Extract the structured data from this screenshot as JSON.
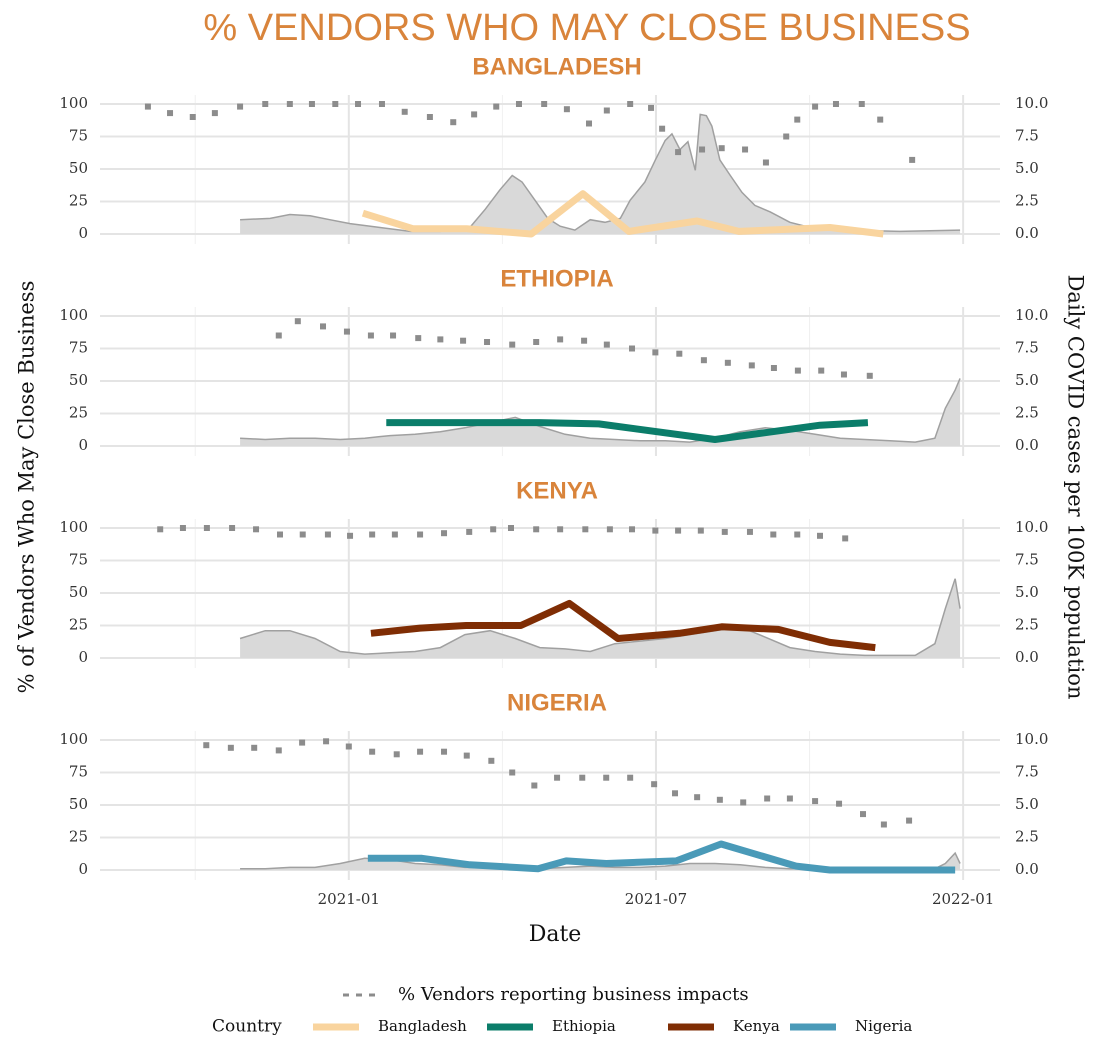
{
  "title": "% VENDORS WHO MAY CLOSE BUSINESS",
  "ylabel": "% of Vendors Who May Close Business",
  "y2label": "Daily COVID cases per 100K population",
  "xaxis": {
    "label": "Date",
    "xlim": [
      2020.595,
      2022.06
    ],
    "xticks": [
      {
        "value": 2021.0,
        "label": "2021-01"
      },
      {
        "value": 2021.5,
        "label": "2021-07"
      },
      {
        "value": 2022.0,
        "label": "2022-01"
      }
    ],
    "minor": [
      2020.75,
      2021.25,
      2021.75
    ]
  },
  "legend": {
    "title": "Country"
  },
  "chart_data": [
    {
      "type": "line",
      "title": "BANGLADESH",
      "ylim": [
        0,
        100
      ],
      "yticks": [
        0,
        25,
        50,
        75,
        100
      ],
      "y2lim": [
        0,
        10
      ],
      "y2ticks": [
        {
          "value": 0,
          "label": "0.0"
        },
        2.5,
        {
          "value": 5,
          "label": "5.0"
        },
        7.5,
        {
          "value": 10,
          "label": "10.0"
        }
      ],
      "grid": true,
      "series": [
        {
          "name": "% Vendors reporting business impacts",
          "style": "dotted",
          "color": "#8c8c8c",
          "x": [
            2020.673,
            2020.709,
            2020.746,
            2020.782,
            2020.823,
            2020.864,
            2020.904,
            2020.94,
            2020.978,
            2021.015,
            2021.054,
            2021.091,
            2021.132,
            2021.17,
            2021.204,
            2021.24,
            2021.277,
            2021.318,
            2021.355,
            2021.391,
            2021.42,
            2021.458,
            2021.492,
            2021.51,
            2021.536,
            2021.575,
            2021.607,
            2021.645,
            2021.679,
            2021.712,
            2021.73,
            2021.759,
            2021.793,
            2021.835,
            2021.865,
            2021.917
          ],
          "values": [
            98,
            93,
            90,
            93,
            98,
            100,
            100,
            100,
            100,
            100,
            100,
            94,
            90,
            86,
            92,
            98,
            100,
            100,
            96,
            85,
            95,
            100,
            97,
            81,
            63,
            65,
            66,
            65,
            55,
            75,
            88,
            98,
            100,
            100,
            88,
            57
          ]
        },
        {
          "name": "Bangladesh",
          "style": "line",
          "color": "#f9d49e",
          "x": [
            2021.023,
            2021.105,
            2021.192,
            2021.297,
            2021.381,
            2021.456,
            2021.567,
            2021.635,
            2021.783,
            2021.87
          ],
          "values": [
            16,
            4,
            4,
            0,
            31,
            2,
            10,
            2,
            5,
            0
          ]
        },
        {
          "style": "area",
          "axis": "y2",
          "color": "#d9d9d9",
          "x": [
            2020.823,
            2020.872,
            2020.904,
            2020.937,
            2020.969,
            2021.002,
            2021.051,
            2021.1,
            2021.149,
            2021.197,
            2021.222,
            2021.246,
            2021.266,
            2021.282,
            2021.303,
            2021.324,
            2021.344,
            2021.368,
            2021.393,
            2021.417,
            2021.442,
            2021.458,
            2021.482,
            2021.499,
            2021.515,
            2021.526,
            2021.539,
            2021.552,
            2021.564,
            2021.572,
            2021.582,
            2021.591,
            2021.604,
            2021.621,
            2021.64,
            2021.661,
            2021.686,
            2021.718,
            2021.751,
            2021.816,
            2021.897,
            2021.995
          ],
          "values": [
            1.1,
            1.2,
            1.5,
            1.4,
            1.1,
            0.8,
            0.5,
            0.2,
            0.2,
            0.5,
            1.9,
            3.4,
            4.5,
            4.0,
            2.6,
            1.2,
            0.6,
            0.3,
            1.1,
            0.9,
            1.2,
            2.6,
            4.0,
            5.7,
            7.2,
            7.7,
            6.5,
            7.1,
            4.9,
            9.2,
            9.1,
            8.3,
            5.7,
            4.5,
            3.2,
            2.2,
            1.7,
            0.9,
            0.5,
            0.3,
            0.2,
            0.3
          ]
        }
      ]
    },
    {
      "type": "line",
      "title": "ETHIOPIA",
      "ylim": [
        0,
        100
      ],
      "yticks": [
        0,
        25,
        50,
        75,
        100
      ],
      "y2lim": [
        0,
        10
      ],
      "y2ticks": [
        {
          "value": 0,
          "label": "0.0"
        },
        2.5,
        {
          "value": 5,
          "label": "5.0"
        },
        7.5,
        {
          "value": 10,
          "label": "10.0"
        }
      ],
      "grid": true,
      "series": [
        {
          "name": "% Vendors reporting business impacts",
          "style": "dotted",
          "color": "#8c8c8c",
          "x": [
            2020.886,
            2020.917,
            2020.958,
            2020.997,
            2021.036,
            2021.072,
            2021.113,
            2021.149,
            2021.186,
            2021.225,
            2021.266,
            2021.305,
            2021.344,
            2021.383,
            2021.42,
            2021.461,
            2021.499,
            2021.538,
            2021.578,
            2021.617,
            2021.656,
            2021.692,
            2021.731,
            2021.769,
            2021.806,
            2021.848
          ],
          "values": [
            85,
            96,
            92,
            88,
            85,
            85,
            83,
            82,
            81,
            80,
            78,
            80,
            82,
            81,
            78,
            75,
            72,
            71,
            66,
            64,
            62,
            60,
            58,
            58,
            55,
            54
          ]
        },
        {
          "name": "Ethiopia",
          "style": "line",
          "color": "#0b7d6a",
          "x": [
            2021.061,
            2021.311,
            2021.407,
            2021.596,
            2021.767,
            2021.845
          ],
          "values": [
            18,
            18,
            17,
            5,
            16,
            18
          ]
        },
        {
          "style": "area",
          "axis": "y2",
          "color": "#d9d9d9",
          "x": [
            2020.823,
            2020.864,
            2020.904,
            2020.945,
            2020.986,
            2021.026,
            2021.067,
            2021.108,
            2021.149,
            2021.189,
            2021.23,
            2021.271,
            2021.311,
            2021.352,
            2021.393,
            2021.433,
            2021.474,
            2021.515,
            2021.555,
            2021.596,
            2021.637,
            2021.678,
            2021.718,
            2021.759,
            2021.8,
            2021.84,
            2021.881,
            2021.922,
            2021.954,
            2021.971,
            2021.987,
            2021.995
          ],
          "values": [
            0.6,
            0.5,
            0.6,
            0.6,
            0.5,
            0.6,
            0.8,
            0.9,
            1.1,
            1.4,
            1.8,
            2.2,
            1.5,
            0.9,
            0.6,
            0.5,
            0.4,
            0.4,
            0.3,
            0.6,
            1.1,
            1.4,
            1.2,
            0.9,
            0.6,
            0.5,
            0.4,
            0.3,
            0.6,
            2.9,
            4.3,
            5.2
          ]
        }
      ]
    },
    {
      "type": "line",
      "title": "KENYA",
      "ylim": [
        0,
        100
      ],
      "yticks": [
        0,
        25,
        50,
        75,
        100
      ],
      "y2lim": [
        0,
        10
      ],
      "y2ticks": [
        {
          "value": 0,
          "label": "0.0"
        },
        2.5,
        {
          "value": 5,
          "label": "5.0"
        },
        7.5,
        {
          "value": 10,
          "label": "10.0"
        }
      ],
      "grid": true,
      "series": [
        {
          "name": "% Vendors reporting business impacts",
          "style": "dotted",
          "color": "#8c8c8c",
          "x": [
            2020.693,
            2020.73,
            2020.769,
            2020.81,
            2020.849,
            2020.888,
            2020.925,
            2020.966,
            2021.002,
            2021.038,
            2021.075,
            2021.116,
            2021.155,
            2021.196,
            2021.235,
            2021.264,
            2021.305,
            2021.344,
            2021.385,
            2021.425,
            2021.461,
            2021.499,
            2021.536,
            2021.573,
            2021.612,
            2021.653,
            2021.691,
            2021.73,
            2021.767,
            2021.808
          ],
          "values": [
            99,
            100,
            100,
            100,
            99,
            95,
            95,
            95,
            94,
            95,
            95,
            95,
            96,
            97,
            99,
            100,
            99,
            99,
            99,
            99,
            99,
            98,
            98,
            98,
            97,
            97,
            95,
            95,
            94,
            92
          ]
        },
        {
          "name": "Kenya",
          "style": "line",
          "color": "#7f2d04",
          "x": [
            2021.036,
            2021.116,
            2021.191,
            2021.28,
            2021.359,
            2021.438,
            2021.538,
            2021.607,
            2021.699,
            2021.783,
            2021.857
          ],
          "values": [
            19,
            23,
            25,
            25,
            42,
            15,
            19,
            24,
            22,
            12,
            8
          ]
        },
        {
          "style": "area",
          "axis": "y2",
          "color": "#d9d9d9",
          "x": [
            2020.823,
            2020.864,
            2020.904,
            2020.945,
            2020.986,
            2021.026,
            2021.067,
            2021.108,
            2021.149,
            2021.189,
            2021.23,
            2021.271,
            2021.311,
            2021.352,
            2021.393,
            2021.433,
            2021.474,
            2021.515,
            2021.555,
            2021.596,
            2021.637,
            2021.678,
            2021.718,
            2021.759,
            2021.8,
            2021.84,
            2021.881,
            2021.922,
            2021.954,
            2021.971,
            2021.987,
            2021.995
          ],
          "values": [
            1.5,
            2.1,
            2.1,
            1.5,
            0.5,
            0.3,
            0.4,
            0.5,
            0.8,
            1.8,
            2.1,
            1.5,
            0.8,
            0.7,
            0.5,
            1.1,
            1.3,
            1.5,
            1.8,
            2.1,
            2.4,
            1.6,
            0.8,
            0.5,
            0.3,
            0.2,
            0.2,
            0.2,
            1.1,
            3.8,
            6.1,
            3.8
          ]
        }
      ]
    },
    {
      "type": "line",
      "title": "NIGERIA",
      "ylim": [
        0,
        100
      ],
      "yticks": [
        0,
        25,
        50,
        75,
        100
      ],
      "y2lim": [
        0,
        10
      ],
      "y2ticks": [
        {
          "value": 0,
          "label": "0.0"
        },
        2.5,
        {
          "value": 5,
          "label": "5.0"
        },
        7.5,
        {
          "value": 10,
          "label": "10.0"
        }
      ],
      "grid": true,
      "series": [
        {
          "name": "% Vendors reporting business impacts",
          "style": "dotted",
          "color": "#8c8c8c",
          "x": [
            2020.768,
            2020.808,
            2020.846,
            2020.886,
            2020.924,
            2020.963,
            2021.0,
            2021.038,
            2021.078,
            2021.116,
            2021.155,
            2021.192,
            2021.232,
            2021.266,
            2021.302,
            2021.339,
            2021.38,
            2021.419,
            2021.458,
            2021.497,
            2021.531,
            2021.567,
            2021.604,
            2021.642,
            2021.681,
            2021.718,
            2021.759,
            2021.798,
            2021.837,
            2021.871,
            2021.912
          ],
          "values": [
            96,
            94,
            94,
            92,
            98,
            99,
            95,
            91,
            89,
            91,
            91,
            88,
            84,
            75,
            65,
            71,
            71,
            71,
            71,
            66,
            59,
            56,
            54,
            52,
            55,
            55,
            53,
            51,
            43,
            35,
            38
          ]
        },
        {
          "name": "Nigeria",
          "style": "line",
          "color": "#4a9ab8",
          "x": [
            2021.031,
            2021.119,
            2021.197,
            2021.308,
            2021.354,
            2021.419,
            2021.533,
            2021.606,
            2021.728,
            2021.783,
            2021.987
          ],
          "values": [
            9,
            9,
            4,
            1,
            7,
            5,
            7,
            20,
            3,
            0,
            0
          ]
        },
        {
          "style": "area",
          "axis": "y2",
          "color": "#d9d9d9",
          "x": [
            2020.823,
            2020.864,
            2020.904,
            2020.945,
            2020.986,
            2021.026,
            2021.067,
            2021.108,
            2021.149,
            2021.189,
            2021.23,
            2021.271,
            2021.311,
            2021.352,
            2021.393,
            2021.433,
            2021.474,
            2021.515,
            2021.555,
            2021.596,
            2021.637,
            2021.678,
            2021.718,
            2021.759,
            2021.8,
            2021.84,
            2021.881,
            2021.922,
            2021.954,
            2021.971,
            2021.987,
            2021.995
          ],
          "values": [
            0.1,
            0.1,
            0.2,
            0.2,
            0.5,
            0.9,
            0.8,
            0.5,
            0.4,
            0.2,
            0.2,
            0.1,
            0.1,
            0.2,
            0.3,
            0.2,
            0.2,
            0.3,
            0.5,
            0.5,
            0.4,
            0.2,
            0.1,
            0.1,
            0.1,
            0.1,
            0.1,
            0.1,
            0.1,
            0.5,
            1.3,
            0.5
          ]
        }
      ]
    }
  ]
}
